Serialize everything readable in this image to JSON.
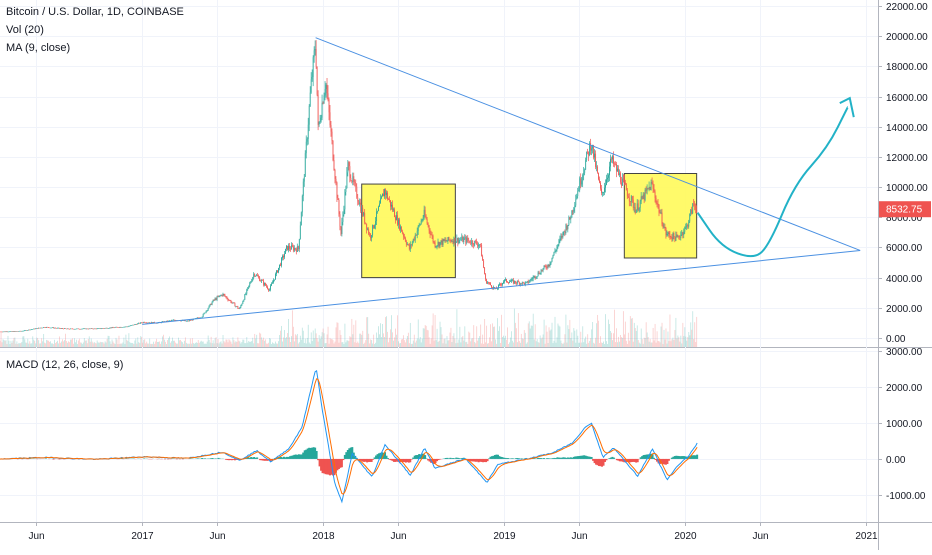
{
  "chart_data": {
    "type": "candlestick",
    "title": "Bitcoin / U.S. Dollar, 1D, COINBASE",
    "indicators": {
      "volume": "Vol (20)",
      "ma": "MA (9, close)",
      "macd": "MACD (12, 26, close, 9)"
    },
    "last_price": "8532.75",
    "price_axis": {
      "ticks": [
        0,
        2000,
        4000,
        6000,
        8000,
        10000,
        12000,
        14000,
        16000,
        18000,
        20000,
        22000
      ],
      "tick_labels": [
        "0.00",
        "2000.00",
        "4000.00",
        "6000.00",
        "8000.00",
        "10000.00",
        "12000.00",
        "14000.00",
        "16000.00",
        "18000.00",
        "20000.00",
        "22000.00"
      ],
      "ylim": [
        -600,
        22400
      ]
    },
    "macd_axis": {
      "ticks": [
        -1000,
        0,
        1000,
        2000,
        3000
      ],
      "tick_labels": [
        "-1000.00",
        "0.00",
        "1000.00",
        "2000.00",
        "3000.00"
      ],
      "ylim": [
        -1750,
        3050
      ]
    },
    "time_axis": {
      "tick_labels": [
        "Jun",
        "2017",
        "Jun",
        "2018",
        "Jun",
        "2019",
        "Jun",
        "2020",
        "Jun",
        "2021"
      ],
      "tick_dates": [
        "2016-06-01",
        "2017-01-01",
        "2017-06-01",
        "2018-01-01",
        "2018-06-01",
        "2019-01-01",
        "2019-06-01",
        "2020-01-01",
        "2020-06-01",
        "2021-01-01"
      ],
      "xlim": [
        "2016-03-20",
        "2021-01-25"
      ]
    },
    "price_path": [
      [
        "2016-03-20",
        415
      ],
      [
        "2016-05-01",
        450
      ],
      [
        "2016-06-18",
        720
      ],
      [
        "2016-08-01",
        600
      ],
      [
        "2016-10-01",
        615
      ],
      [
        "2016-12-01",
        750
      ],
      [
        "2017-01-04",
        1050
      ],
      [
        "2017-02-01",
        1000
      ],
      [
        "2017-03-10",
        1200
      ],
      [
        "2017-04-01",
        1100
      ],
      [
        "2017-05-01",
        1400
      ],
      [
        "2017-05-25",
        2500
      ],
      [
        "2017-06-12",
        2900
      ],
      [
        "2017-07-16",
        1900
      ],
      [
        "2017-08-15",
        4300
      ],
      [
        "2017-09-15",
        3200
      ],
      [
        "2017-10-20",
        6000
      ],
      [
        "2017-11-12",
        5900
      ],
      [
        "2017-12-07",
        16500
      ],
      [
        "2017-12-17",
        19650
      ],
      [
        "2017-12-22",
        13800
      ],
      [
        "2018-01-06",
        17100
      ],
      [
        "2018-02-06",
        6900
      ],
      [
        "2018-02-20",
        11400
      ],
      [
        "2018-04-06",
        6700
      ],
      [
        "2018-05-05",
        9800
      ],
      [
        "2018-06-24",
        5900
      ],
      [
        "2018-07-24",
        8200
      ],
      [
        "2018-08-14",
        6200
      ],
      [
        "2018-09-15",
        6500
      ],
      [
        "2018-10-15",
        6500
      ],
      [
        "2018-11-14",
        6200
      ],
      [
        "2018-11-25",
        3800
      ],
      [
        "2018-12-15",
        3200
      ],
      [
        "2019-01-01",
        3800
      ],
      [
        "2019-02-15",
        3600
      ],
      [
        "2019-04-02",
        4900
      ],
      [
        "2019-05-14",
        7900
      ],
      [
        "2019-06-26",
        13000
      ],
      [
        "2019-07-17",
        9400
      ],
      [
        "2019-08-06",
        11800
      ],
      [
        "2019-09-24",
        8500
      ],
      [
        "2019-10-26",
        10200
      ],
      [
        "2019-11-24",
        6900
      ],
      [
        "2019-12-17",
        6600
      ],
      [
        "2020-01-05",
        7400
      ],
      [
        "2020-01-19",
        8900
      ],
      [
        "2020-01-26",
        8532
      ]
    ],
    "volume_bars": 0,
    "macd_path": [
      [
        "2016-03-20",
        0
      ],
      [
        "2016-06-18",
        40
      ],
      [
        "2016-10-01",
        -10
      ],
      [
        "2017-01-04",
        60
      ],
      [
        "2017-04-01",
        15
      ],
      [
        "2017-06-12",
        190
      ],
      [
        "2017-07-16",
        -40
      ],
      [
        "2017-08-20",
        230
      ],
      [
        "2017-09-18",
        -80
      ],
      [
        "2017-10-25",
        300
      ],
      [
        "2017-11-20",
        900
      ],
      [
        "2017-12-18",
        2550
      ],
      [
        "2017-12-30",
        1400
      ],
      [
        "2018-01-25",
        -700
      ],
      [
        "2018-02-08",
        -1200
      ],
      [
        "2018-03-01",
        150
      ],
      [
        "2018-04-10",
        -500
      ],
      [
        "2018-05-06",
        400
      ],
      [
        "2018-06-26",
        -450
      ],
      [
        "2018-07-25",
        300
      ],
      [
        "2018-08-15",
        -260
      ],
      [
        "2018-10-15",
        10
      ],
      [
        "2018-11-28",
        -650
      ],
      [
        "2018-12-20",
        -150
      ],
      [
        "2019-02-15",
        0
      ],
      [
        "2019-04-10",
        170
      ],
      [
        "2019-05-20",
        450
      ],
      [
        "2019-06-15",
        900
      ],
      [
        "2019-06-27",
        980
      ],
      [
        "2019-07-20",
        40
      ],
      [
        "2019-08-10",
        320
      ],
      [
        "2019-09-28",
        -480
      ],
      [
        "2019-10-28",
        280
      ],
      [
        "2019-11-26",
        -580
      ],
      [
        "2019-12-20",
        -150
      ],
      [
        "2020-01-10",
        100
      ],
      [
        "2020-01-26",
        430
      ]
    ],
    "annotations": {
      "triangle_upper": [
        [
          "2017-12-17",
          19900
        ],
        [
          "2020-12-20",
          5800
        ]
      ],
      "triangle_lower": [
        [
          "2017-01-01",
          900
        ],
        [
          "2020-12-20",
          5800
        ]
      ],
      "boxes": [
        {
          "from": "2018-03-20",
          "to": "2018-09-25",
          "low": 4000,
          "high": 10200,
          "color": "#FFF95A"
        },
        {
          "from": "2019-09-01",
          "to": "2020-01-25",
          "low": 5300,
          "high": 10900,
          "color": "#FFF95A"
        }
      ],
      "projection": [
        [
          "2020-01-27",
          8300
        ],
        [
          "2020-03-15",
          6000
        ],
        [
          "2020-05-20",
          5200
        ],
        [
          "2020-06-20",
          6200
        ],
        [
          "2020-08-10",
          10200
        ],
        [
          "2020-10-15",
          12600
        ],
        [
          "2020-11-25",
          15300
        ]
      ],
      "projection_color": "#22B2C7"
    },
    "colors": {
      "up": "#26A69A",
      "down": "#EF5350",
      "line": "#4A90E2",
      "macd_line": "#2196F3",
      "signal_line": "#FF6D00",
      "badge": "#EF5350"
    }
  }
}
